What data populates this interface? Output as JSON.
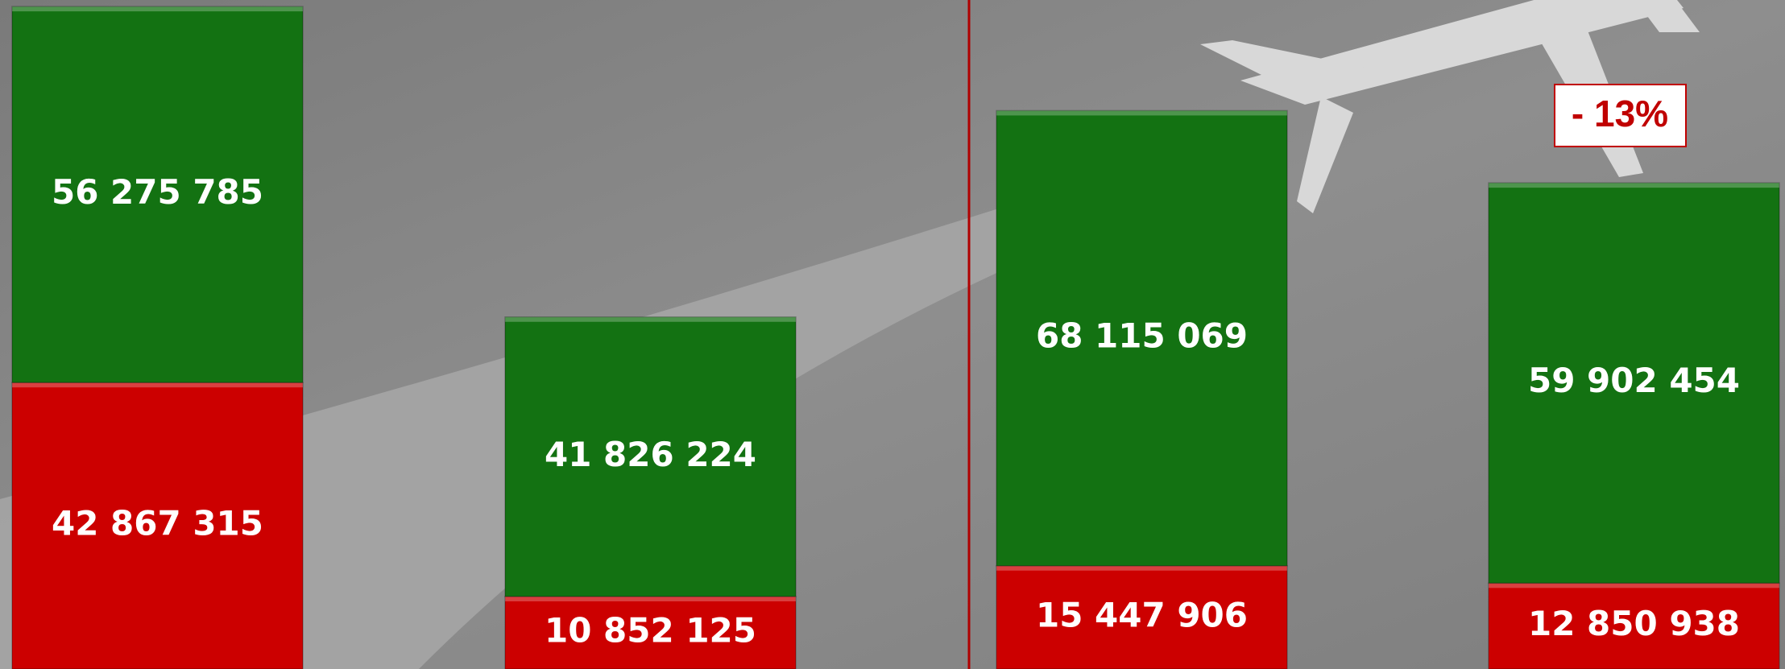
{
  "chart_data": {
    "type": "stacked-bar",
    "series": [
      {
        "color": "#cc0000",
        "values": [
          42867315,
          10852125,
          15447906,
          12850938
        ],
        "value_labels": [
          "42 867 315",
          "10 852 125",
          "15 447 906",
          "12 850 938"
        ]
      },
      {
        "color": "#137212",
        "values": [
          56275785,
          41826224,
          68115069,
          59902454
        ],
        "value_labels": [
          "56 275 785",
          "41 826 224",
          "68 115 069",
          "59 902 454"
        ]
      }
    ],
    "annotations": [
      "- 13%"
    ]
  }
}
